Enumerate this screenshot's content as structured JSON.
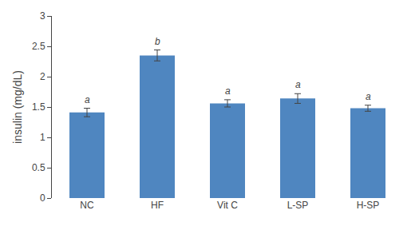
{
  "chart_data": {
    "type": "bar",
    "categories": [
      "NC",
      "HF",
      "Vit C",
      "L-SP",
      "H-SP"
    ],
    "values": [
      1.41,
      2.35,
      1.56,
      1.64,
      1.48
    ],
    "errors": [
      0.07,
      0.09,
      0.06,
      0.08,
      0.05
    ],
    "annotations": [
      "a",
      "b",
      "a",
      "a",
      "a"
    ],
    "color": "#4f86c0",
    "ylabel": "insulin (mg/dL)",
    "ylim": [
      0,
      3
    ],
    "yticks": [
      0,
      0.5,
      1,
      1.5,
      2,
      2.5,
      3
    ],
    "grid": false
  }
}
